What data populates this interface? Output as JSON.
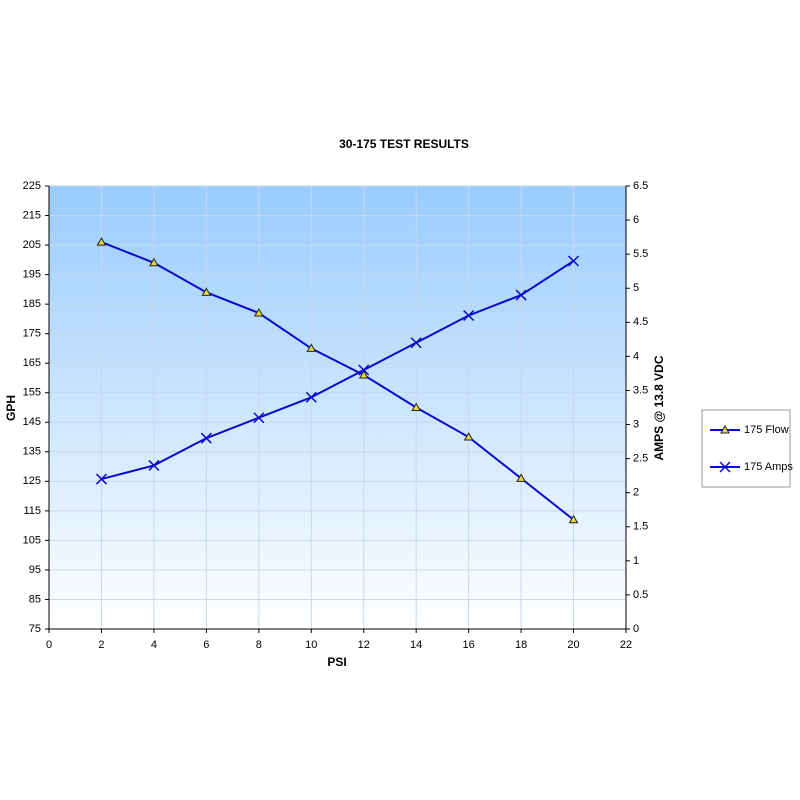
{
  "chart_data": {
    "type": "line",
    "title": "30-175 TEST RESULTS",
    "x_label": "PSI",
    "y_label": "GPH",
    "y2_label": "AMPS @ 13.8 VDC",
    "x": [
      2,
      4,
      6,
      8,
      10,
      12,
      14,
      16,
      18,
      20
    ],
    "series": [
      {
        "name": "175 Flow",
        "color": "#0a0acc",
        "marker": "triangle",
        "values": [
          206,
          199,
          189,
          182,
          170,
          161,
          150,
          140,
          126,
          112
        ]
      },
      {
        "name": "175 Amps",
        "color": "#0a0acc",
        "marker": "x",
        "axis": "y2",
        "values": [
          2.2,
          2.4,
          2.8,
          3.1,
          3.4,
          3.8,
          4.2,
          4.6,
          4.9,
          5.4
        ]
      }
    ],
    "xlim": [
      0,
      22
    ],
    "xticks": [
      0,
      2,
      4,
      6,
      8,
      10,
      12,
      14,
      16,
      18,
      20,
      22
    ],
    "ylim": [
      75,
      225
    ],
    "yticks": [
      75,
      85,
      95,
      105,
      115,
      125,
      135,
      145,
      155,
      165,
      175,
      185,
      195,
      205,
      215,
      225
    ],
    "y2lim": [
      0,
      6.5
    ],
    "y2ticks": [
      0,
      0.5,
      1,
      1.5,
      2,
      2.5,
      3,
      3.5,
      4,
      4.5,
      5,
      5.5,
      6,
      6.5
    ],
    "grid": true,
    "legend": "right"
  }
}
